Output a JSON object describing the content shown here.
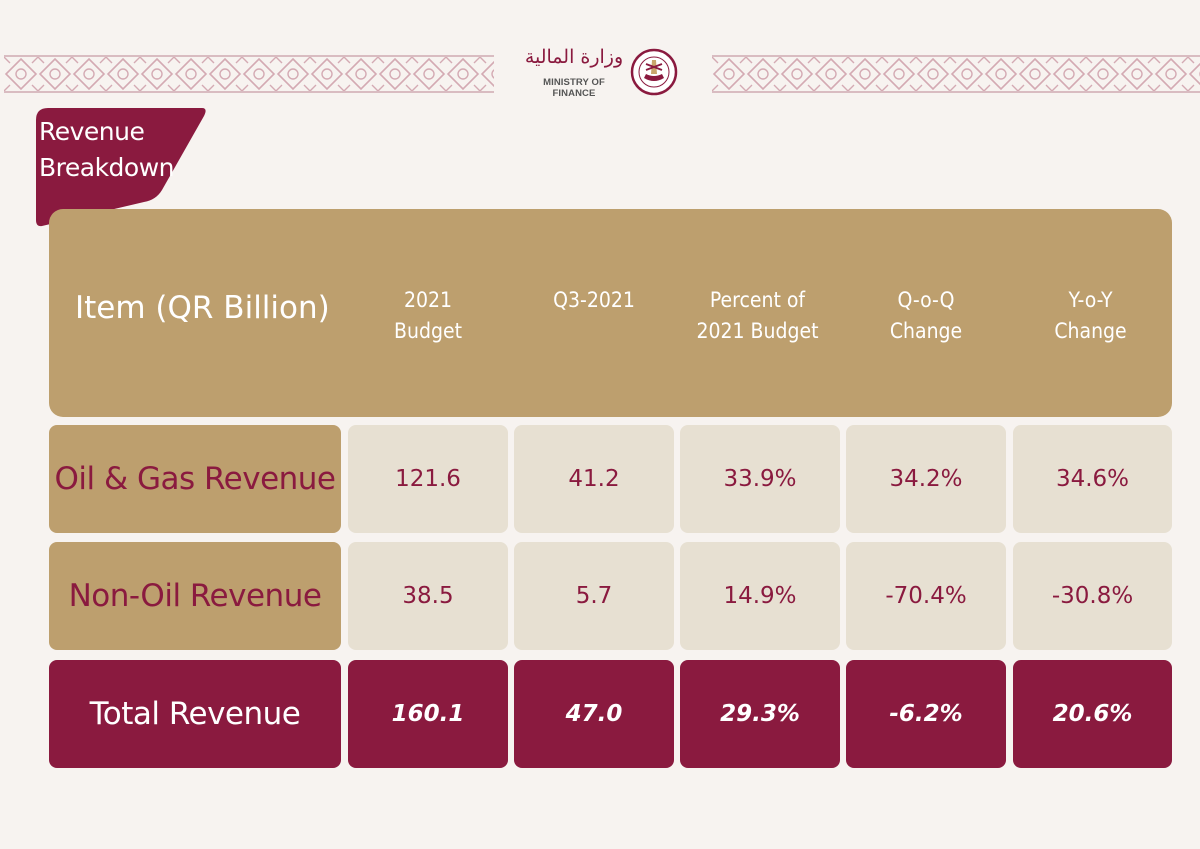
{
  "logo": {
    "arabic": "وزارة المالية",
    "english": "MINISTRY OF FINANCE"
  },
  "section_title": "Revenue Breakdown",
  "table": {
    "headers": [
      "Item (QR Billion)",
      "2021\nBudget",
      "Q3-2021",
      "Percent of\n2021 Budget",
      "Q-o-Q\nChange",
      "Y-o-Y\nChange"
    ],
    "rows": [
      {
        "label": "Oil & Gas Revenue",
        "values": [
          "121.6",
          "41.2",
          "33.9%",
          "34.2%",
          "34.6%"
        ]
      },
      {
        "label": "Non-Oil Revenue",
        "values": [
          "38.5",
          "5.7",
          "14.9%",
          "-70.4%",
          "-30.8%"
        ]
      },
      {
        "label": "Total Revenue",
        "values": [
          "160.1",
          "47.0",
          "29.3%",
          "-6.2%",
          "20.6%"
        ]
      }
    ]
  },
  "colors": {
    "gold": "#bd9f6e",
    "maroon": "#8a1a3f",
    "light_cell": "#e7e0d2",
    "background": "#f7f3f0"
  }
}
